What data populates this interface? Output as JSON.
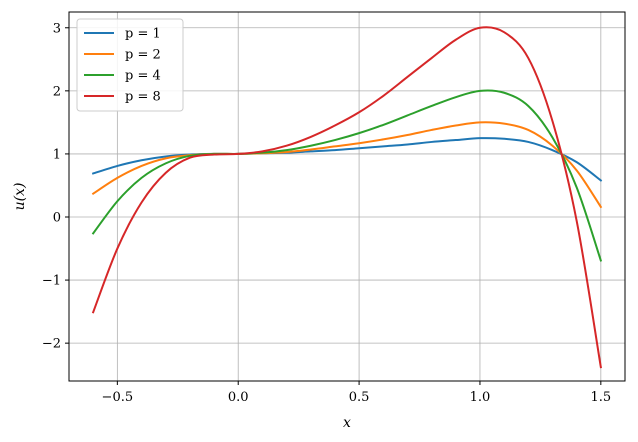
{
  "chart_data": {
    "type": "line",
    "xlabel": "x",
    "ylabel": "u(x)",
    "xlim": [
      -0.7,
      1.6
    ],
    "ylim": [
      -2.6,
      3.25
    ],
    "xticks": [
      -0.5,
      0.0,
      0.5,
      1.0,
      1.5
    ],
    "xtick_labels": [
      "−0.5",
      "0.0",
      "0.5",
      "1.0",
      "1.5"
    ],
    "yticks": [
      -2,
      -1,
      0,
      1,
      2,
      3
    ],
    "ytick_labels": [
      "−2",
      "−1",
      "0",
      "1",
      "2",
      "3"
    ],
    "grid": true,
    "legend_position": "top-left",
    "x": [
      -0.6,
      -0.5,
      -0.4,
      -0.3,
      -0.2,
      -0.1,
      0.0,
      0.1,
      0.2,
      0.3,
      0.4,
      0.5,
      0.6,
      0.7,
      0.8,
      0.9,
      1.0,
      1.1,
      1.2,
      1.3,
      1.4,
      1.5
    ],
    "series": [
      {
        "name": "p = 1",
        "color": "#1f77b4",
        "values": [
          0.69,
          0.81,
          0.9,
          0.96,
          0.99,
          1.0,
          1.0,
          1.01,
          1.02,
          1.04,
          1.06,
          1.09,
          1.12,
          1.15,
          1.19,
          1.22,
          1.25,
          1.24,
          1.19,
          1.06,
          0.87,
          0.58
        ]
      },
      {
        "name": "p = 2",
        "color": "#ff7f0e",
        "values": [
          0.37,
          0.62,
          0.81,
          0.93,
          0.98,
          1.0,
          1.0,
          1.01,
          1.03,
          1.07,
          1.12,
          1.17,
          1.23,
          1.3,
          1.38,
          1.45,
          1.5,
          1.48,
          1.38,
          1.13,
          0.74,
          0.16
        ]
      },
      {
        "name": "p = 4",
        "color": "#2ca02c",
        "values": [
          -0.26,
          0.25,
          0.62,
          0.85,
          0.97,
          1.0,
          1.0,
          1.02,
          1.06,
          1.13,
          1.22,
          1.33,
          1.46,
          1.61,
          1.76,
          1.9,
          2.0,
          1.97,
          1.76,
          1.26,
          0.47,
          -0.69
        ]
      },
      {
        "name": "p = 8",
        "color": "#d62728",
        "values": [
          -1.51,
          -0.5,
          0.23,
          0.7,
          0.94,
          0.99,
          1.0,
          1.04,
          1.13,
          1.27,
          1.45,
          1.66,
          1.92,
          2.22,
          2.52,
          2.81,
          3.0,
          2.93,
          2.52,
          1.52,
          -0.06,
          -2.38
        ]
      }
    ]
  }
}
